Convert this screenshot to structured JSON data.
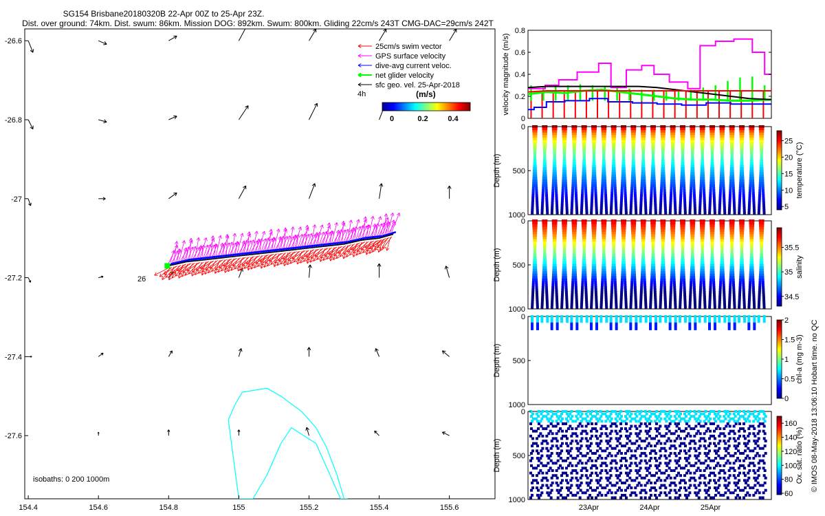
{
  "title": {
    "line1": "SG154 Brisbane20180320B 22-Apr 00Z to 25-Apr 23Z.",
    "line2": "Dist. over ground: 74km. Dist. swum: 86km. Mission DOG: 892km. Swum: 800km. Gliding 22cm/s 243T CMG-DAC=29cm/s 242T"
  },
  "side_note": "© IMOS 08-May-2018 13:06:10 Hobart time. no QC",
  "colors": {
    "swim": "#ff0000",
    "gps": "#ff00ff",
    "dac": "#0000ff",
    "net": "#00ff00",
    "geo": "#000000",
    "isobath": "#00ffff",
    "map_arrow": "#000000"
  },
  "chart_data": [
    {
      "type": "scatter",
      "name": "map",
      "xlim": [
        154.39,
        155.73
      ],
      "ylim": [
        -27.76,
        -26.57
      ],
      "xticks": [
        154.4,
        154.6,
        154.8,
        155,
        155.2,
        155.4,
        155.6
      ],
      "xtick_labels": [
        "154.4",
        "154.6",
        "154.8",
        "155",
        "155.2",
        "155.4",
        "155.6"
      ],
      "yticks": [
        -26.6,
        -26.8,
        -27,
        -27.2,
        -27.4,
        -27.6
      ],
      "ytick_labels": [
        "-26.6",
        "-26.8",
        "-27",
        "-27.2",
        "-27.4",
        "-27.6"
      ],
      "legend": {
        "items": [
          {
            "label": "25cm/s swim vector",
            "color": "#ff0000"
          },
          {
            "label": "GPS surface velocity",
            "color": "#ff00ff"
          },
          {
            "label": "dive-avg current veloc.",
            "color": "#0000ff"
          },
          {
            "label": "net glider velocity",
            "color": "#00ff00"
          },
          {
            "label": "sfc geo. vel. 25-Apr-2018",
            "color": "#000000"
          }
        ],
        "interval_label": "4h",
        "units_label": "(m/s)",
        "colorbar_ticks": [
          "0",
          "0.2",
          "0.4"
        ]
      },
      "annotation_26": "26",
      "isobath_label": "isobaths: 0   200  1000m",
      "track": {
        "lon": [
          154.8,
          154.85,
          154.9,
          154.95,
          155.0,
          155.05,
          155.1,
          155.15,
          155.2,
          155.25,
          155.3,
          155.35,
          155.4,
          155.44
        ],
        "lat": [
          -27.17,
          -27.16,
          -27.155,
          -27.15,
          -27.145,
          -27.14,
          -27.135,
          -27.13,
          -27.125,
          -27.12,
          -27.115,
          -27.105,
          -27.1,
          -27.09
        ]
      },
      "isobath": {
        "lon": [
          154.99,
          155.01,
          155.08,
          155.12,
          155.18,
          155.22,
          155.25,
          155.28,
          155.3,
          155.31,
          155.29,
          155.22,
          155.15,
          155.12,
          155.08,
          155.04,
          155.0,
          154.97,
          154.99
        ],
        "lat": [
          -27.52,
          -27.49,
          -27.48,
          -27.5,
          -27.54,
          -27.58,
          -27.63,
          -27.7,
          -27.76,
          -27.76,
          -27.76,
          -27.62,
          -27.58,
          -27.62,
          -27.7,
          -27.76,
          -27.76,
          -27.56,
          -27.52
        ]
      },
      "geo_vectors": [
        {
          "lon": 154.4,
          "lat": -26.6,
          "u": 0.04,
          "v": -0.1
        },
        {
          "lon": 154.6,
          "lat": -26.6,
          "u": 0.07,
          "v": -0.03
        },
        {
          "lon": 154.8,
          "lat": -26.6,
          "u": 0.07,
          "v": 0.04
        },
        {
          "lon": 155.0,
          "lat": -26.6,
          "u": 0.07,
          "v": 0.13
        },
        {
          "lon": 155.2,
          "lat": -26.6,
          "u": 0.06,
          "v": 0.1
        },
        {
          "lon": 155.4,
          "lat": -26.6,
          "u": 0.06,
          "v": 0.1
        },
        {
          "lon": 155.6,
          "lat": -26.6,
          "u": 0.06,
          "v": 0.1
        },
        {
          "lon": 154.4,
          "lat": -26.8,
          "u": 0.04,
          "v": -0.08
        },
        {
          "lon": 154.6,
          "lat": -26.8,
          "u": 0.07,
          "v": -0.02
        },
        {
          "lon": 154.8,
          "lat": -26.8,
          "u": 0.07,
          "v": 0.03
        },
        {
          "lon": 155.0,
          "lat": -26.8,
          "u": 0.08,
          "v": 0.12
        },
        {
          "lon": 155.2,
          "lat": -26.8,
          "u": 0.07,
          "v": 0.14
        },
        {
          "lon": 155.4,
          "lat": -26.8,
          "u": 0.05,
          "v": 0.13
        },
        {
          "lon": 154.4,
          "lat": -27.0,
          "u": 0.02,
          "v": -0.06
        },
        {
          "lon": 154.6,
          "lat": -27.0,
          "u": 0.06,
          "v": 0.0
        },
        {
          "lon": 154.8,
          "lat": -27.0,
          "u": 0.07,
          "v": 0.05
        },
        {
          "lon": 155.0,
          "lat": -27.0,
          "u": 0.06,
          "v": 0.11
        },
        {
          "lon": 155.2,
          "lat": -27.0,
          "u": 0.05,
          "v": 0.13
        },
        {
          "lon": 155.4,
          "lat": -27.0,
          "u": 0.02,
          "v": 0.13
        },
        {
          "lon": 155.6,
          "lat": -27.0,
          "u": 0.0,
          "v": 0.11
        },
        {
          "lon": 154.4,
          "lat": -27.2,
          "u": 0.02,
          "v": -0.04
        },
        {
          "lon": 154.6,
          "lat": -27.2,
          "u": 0.04,
          "v": 0.01
        },
        {
          "lon": 154.8,
          "lat": -27.2,
          "u": 0.04,
          "v": 0.05
        },
        {
          "lon": 155.0,
          "lat": -27.2,
          "u": 0.03,
          "v": 0.08
        },
        {
          "lon": 155.2,
          "lat": -27.2,
          "u": 0.01,
          "v": 0.11
        },
        {
          "lon": 155.4,
          "lat": -27.2,
          "u": 0.0,
          "v": 0.12
        },
        {
          "lon": 155.6,
          "lat": -27.2,
          "u": -0.03,
          "v": 0.1
        },
        {
          "lon": 154.4,
          "lat": -27.4,
          "u": 0.03,
          "v": 0.0
        },
        {
          "lon": 154.6,
          "lat": -27.4,
          "u": 0.04,
          "v": 0.03
        },
        {
          "lon": 154.8,
          "lat": -27.4,
          "u": 0.03,
          "v": 0.05
        },
        {
          "lon": 155.0,
          "lat": -27.4,
          "u": 0.02,
          "v": 0.07
        },
        {
          "lon": 155.2,
          "lat": -27.4,
          "u": 0.0,
          "v": 0.08
        },
        {
          "lon": 155.4,
          "lat": -27.4,
          "u": -0.03,
          "v": 0.07
        },
        {
          "lon": 155.6,
          "lat": -27.4,
          "u": -0.06,
          "v": 0.05
        },
        {
          "lon": 154.6,
          "lat": -27.6,
          "u": 0.0,
          "v": 0.03
        },
        {
          "lon": 154.8,
          "lat": -27.6,
          "u": 0.0,
          "v": 0.05
        },
        {
          "lon": 155.0,
          "lat": -27.6,
          "u": 0.0,
          "v": 0.05
        },
        {
          "lon": 155.2,
          "lat": -27.6,
          "u": -0.02,
          "v": 0.07
        },
        {
          "lon": 155.4,
          "lat": -27.6,
          "u": -0.04,
          "v": 0.04
        },
        {
          "lon": 155.6,
          "lat": -27.6,
          "u": -0.06,
          "v": 0.03
        }
      ]
    },
    {
      "type": "line",
      "name": "velocity",
      "ylabel": "velocity magnitude (m/s)",
      "ylim": [
        0,
        0.8
      ],
      "yticks": [
        0,
        0.2,
        0.4,
        0.6,
        0.8
      ],
      "ytick_labels": [
        "0",
        "0.2",
        "0.4",
        "0.6",
        "0.8"
      ],
      "series": [
        {
          "key": "gps",
          "color": "#ff00ff",
          "x": [
            0,
            0.28,
            0.28,
            0.5,
            0.5,
            0.8,
            0.8,
            1.15,
            1.15,
            1.35,
            1.35,
            1.6,
            1.6,
            1.85,
            1.85,
            2.05,
            2.05,
            2.3,
            2.3,
            2.6,
            2.6,
            2.8,
            2.8,
            3.05,
            3.05,
            3.35,
            3.35,
            3.5,
            3.5,
            3.65,
            3.65,
            3.85,
            3.85,
            3.96
          ],
          "y": [
            0.27,
            0.27,
            0.3,
            0.3,
            0.35,
            0.35,
            0.42,
            0.42,
            0.5,
            0.5,
            0.28,
            0.28,
            0.44,
            0.44,
            0.48,
            0.48,
            0.4,
            0.4,
            0.33,
            0.33,
            0.27,
            0.27,
            0.66,
            0.66,
            0.7,
            0.7,
            0.72,
            0.72,
            0.72,
            0.72,
            0.6,
            0.6,
            0.4,
            0.4
          ]
        },
        {
          "key": "dac",
          "color": "#0000ff",
          "x": [
            0,
            0.1,
            0.1,
            0.3,
            0.3,
            0.6,
            0.6,
            1.0,
            1.0,
            1.3,
            1.3,
            1.7,
            1.7,
            2.1,
            2.1,
            2.5,
            2.5,
            2.9,
            2.9,
            3.3,
            3.3,
            3.7,
            3.7,
            3.96
          ],
          "y": [
            0.08,
            0.08,
            0.1,
            0.1,
            0.15,
            0.15,
            0.16,
            0.16,
            0.18,
            0.18,
            0.15,
            0.15,
            0.14,
            0.14,
            0.13,
            0.13,
            0.12,
            0.12,
            0.14,
            0.14,
            0.13,
            0.13,
            0.13,
            0.13
          ]
        },
        {
          "key": "net",
          "color": "#00ff00",
          "x": [
            0,
            0.3,
            0.6,
            0.9,
            1.2,
            1.5,
            1.8,
            2.1,
            2.4,
            2.7,
            3.0,
            3.3,
            3.6,
            3.96
          ],
          "y": [
            0.22,
            0.24,
            0.23,
            0.25,
            0.26,
            0.24,
            0.22,
            0.2,
            0.18,
            0.17,
            0.17,
            0.16,
            0.16,
            0.17
          ]
        },
        {
          "key": "geo",
          "color": "#000000",
          "x": [
            0,
            0.3,
            0.6,
            0.9,
            1.2,
            1.5,
            1.8,
            2.1,
            2.4,
            2.7,
            3.0,
            3.3,
            3.6,
            3.96
          ],
          "y": [
            0.28,
            0.29,
            0.29,
            0.29,
            0.29,
            0.29,
            0.29,
            0.28,
            0.26,
            0.24,
            0.22,
            0.2,
            0.18,
            0.17
          ]
        },
        {
          "key": "swim",
          "color": "#ff0000",
          "x": [
            0,
            0.3,
            0.6,
            0.9,
            1.2,
            1.5,
            1.8,
            2.1,
            2.4,
            2.7,
            3.0,
            3.3,
            3.6,
            3.96
          ],
          "y": [
            0.24,
            0.25,
            0.25,
            0.25,
            0.25,
            0.25,
            0.25,
            0.25,
            0.25,
            0.25,
            0.25,
            0.25,
            0.25,
            0.25
          ]
        }
      ],
      "net_spikes_x": [
        0.05,
        0.25,
        0.45,
        0.65,
        0.85,
        1.05,
        1.25,
        1.45,
        1.65,
        1.85,
        2.05,
        2.25,
        2.45,
        2.65,
        2.85,
        3.05,
        3.25,
        3.45,
        3.65,
        3.85
      ],
      "net_spikes_top": [
        0.3,
        0.28,
        0.29,
        0.3,
        0.31,
        0.3,
        0.29,
        0.28,
        0.27,
        0.26,
        0.26,
        0.25,
        0.25,
        0.26,
        0.28,
        0.3,
        0.34,
        0.37,
        0.38,
        0.3
      ]
    },
    {
      "type": "scatter",
      "name": "temperature",
      "ylabel": "Depth (m)",
      "cblabel": "temperature (°C)",
      "ylim": [
        1000,
        0
      ],
      "yticks": [
        0,
        500,
        1000
      ],
      "ytick_labels": [
        "0",
        "500",
        "1000"
      ],
      "cbticks": [
        "5",
        "10",
        "15",
        "20",
        "25"
      ],
      "cbrange": [
        4,
        28
      ]
    },
    {
      "type": "scatter",
      "name": "salinity",
      "ylabel": "Depth (m)",
      "cblabel": "salinity",
      "ylim": [
        1000,
        0
      ],
      "yticks": [
        0,
        500,
        1000
      ],
      "ytick_labels": [
        "0",
        "500",
        "1000"
      ],
      "cbticks": [
        "34.5",
        "35",
        "35.5"
      ],
      "cbrange": [
        34.3,
        35.9
      ]
    },
    {
      "type": "scatter",
      "name": "chla",
      "ylabel": "Depth (m)",
      "cblabel": "chl-a (mg m-3)",
      "ylim": [
        1000,
        0
      ],
      "yticks": [
        0,
        500,
        1000
      ],
      "ytick_labels": [
        "0",
        "500",
        "1000"
      ],
      "cbticks": [
        "0",
        "0.5",
        "1",
        "1.5",
        "2"
      ],
      "cbrange": [
        0,
        2
      ]
    },
    {
      "type": "scatter",
      "name": "oxygen",
      "ylabel": "Depth (m)",
      "cblabel": "Ox. sat. ratio (%)",
      "ylim": [
        1000,
        0
      ],
      "yticks": [
        0,
        500,
        1000
      ],
      "ytick_labels": [
        "0",
        "500",
        "1000"
      ],
      "cbticks": [
        "60",
        "80",
        "100",
        "120",
        "140",
        "160"
      ],
      "cbrange": [
        58,
        170
      ],
      "xlim": [
        0,
        4
      ],
      "xticks": [
        1,
        2,
        3
      ],
      "xtick_labels": [
        "23Apr",
        "24Apr",
        "25Apr"
      ]
    }
  ]
}
